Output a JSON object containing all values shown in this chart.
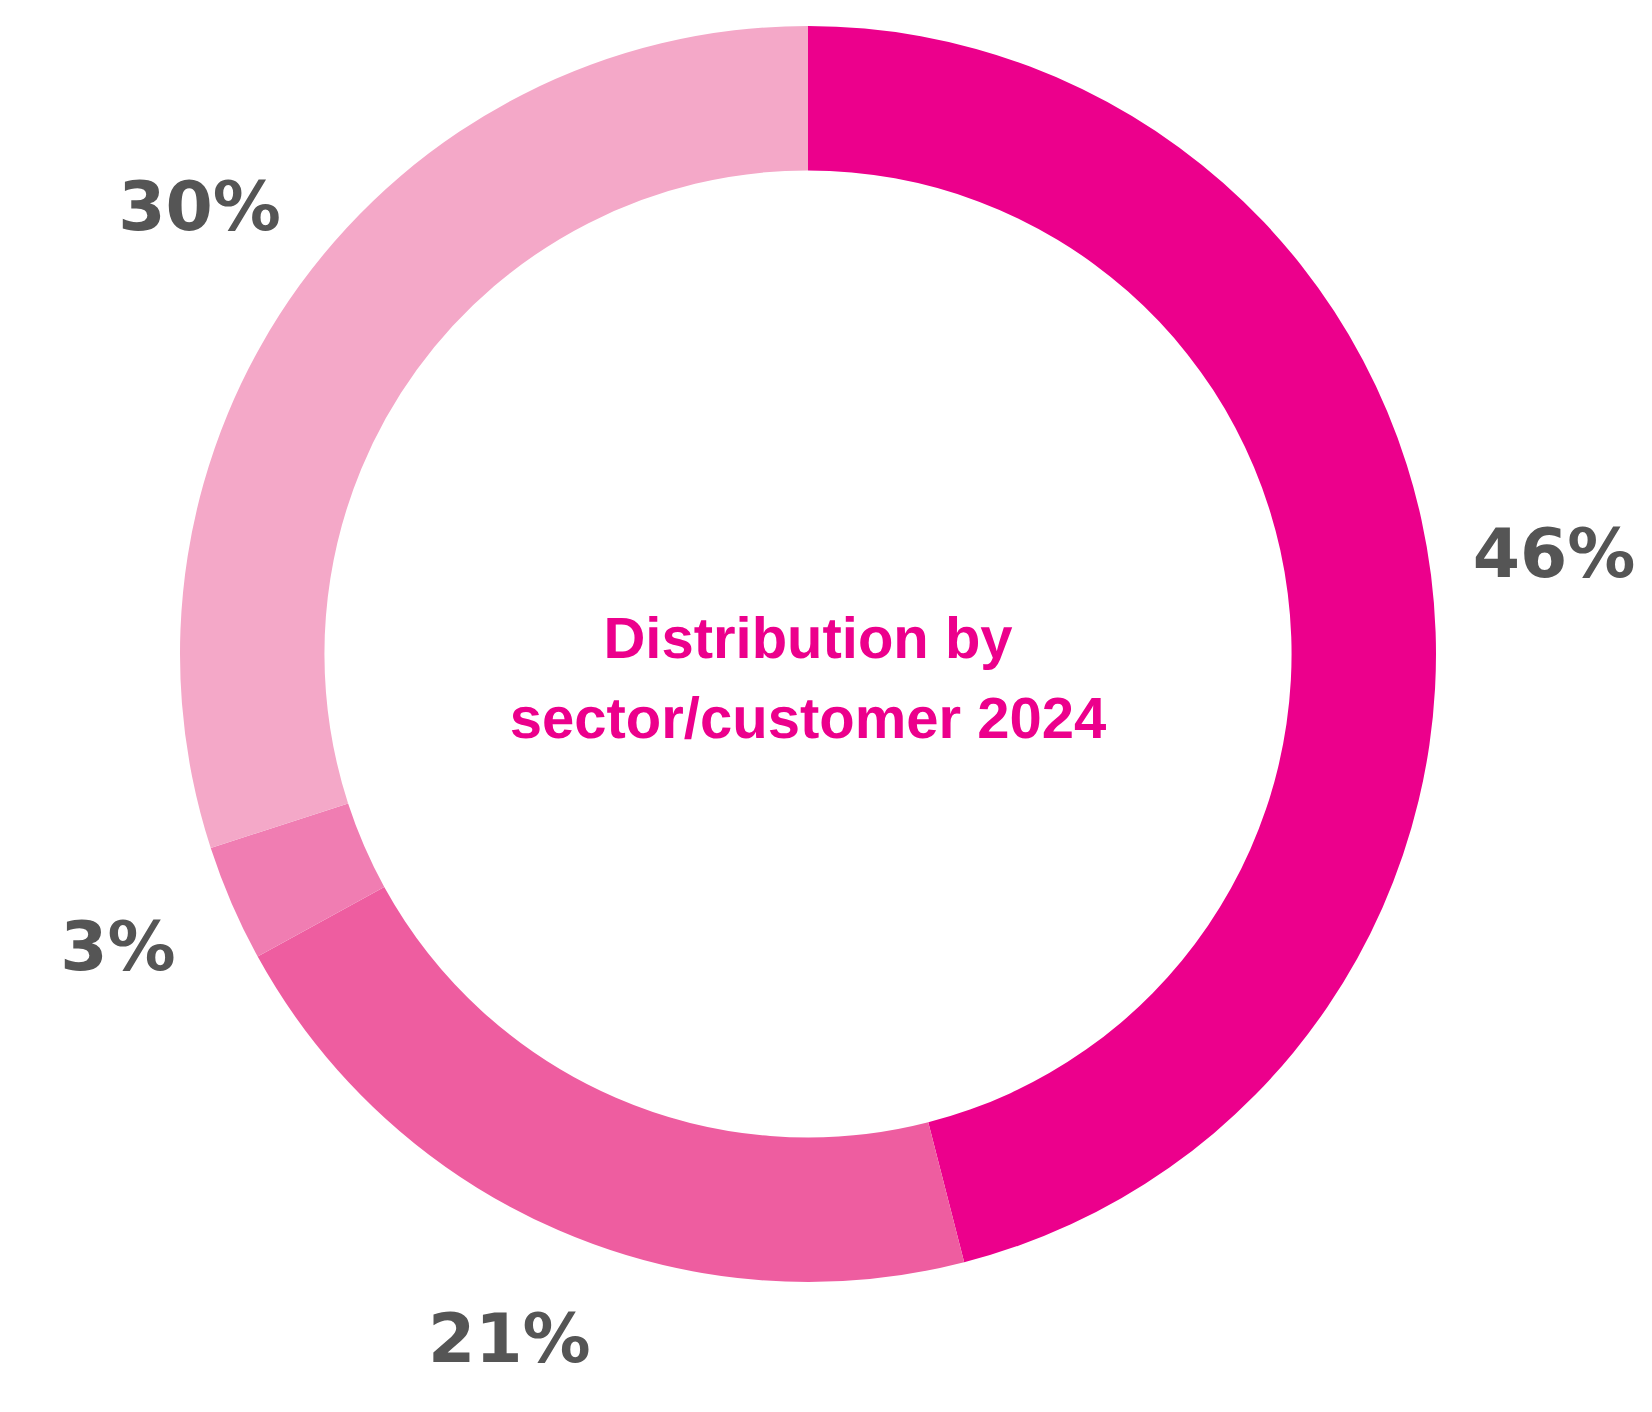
{
  "chart_data": {
    "type": "donut",
    "title": "Distribution by sector/customer 2024",
    "categories": [
      null,
      null,
      null,
      null
    ],
    "values": [
      46,
      21,
      3,
      30
    ],
    "colors": [
      "#ec008c",
      "#ee5da0",
      "#f07db2",
      "#f4a8c8"
    ],
    "value_labels": [
      "46%",
      "21%",
      "3%",
      "30%"
    ],
    "legend": false
  }
}
